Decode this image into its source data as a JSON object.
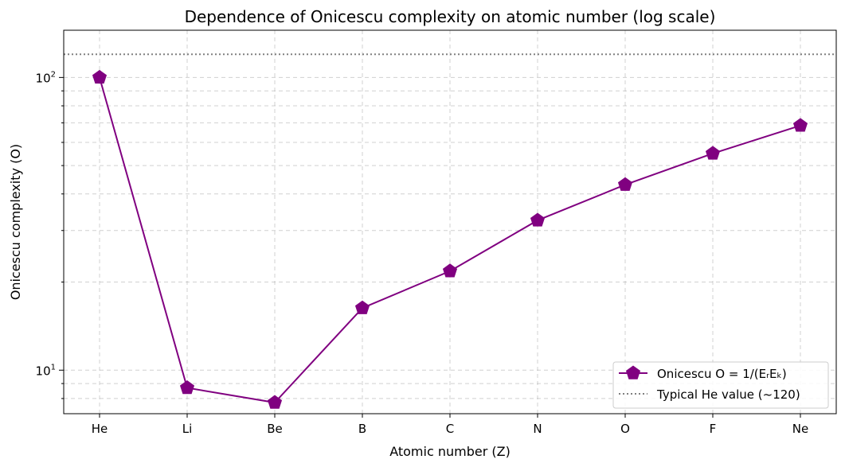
{
  "chart_data": {
    "type": "line",
    "title": "Dependence of Onicescu complexity on atomic number (log scale)",
    "xlabel": "Atomic number (Z)",
    "ylabel": "Onicescu complexity (O)",
    "yscale": "log",
    "ylim": [
      7.1,
      145
    ],
    "categories": [
      "He",
      "Li",
      "Be",
      "B",
      "C",
      "N",
      "O",
      "F",
      "Ne"
    ],
    "y_ticks": [
      {
        "value": 10,
        "base": "10",
        "exp": "1"
      },
      {
        "value": 100,
        "base": "10",
        "exp": "2"
      }
    ],
    "series": [
      {
        "name": "Onicescu O = 1/(EᵣEₖ)",
        "color": "#800080",
        "marker": "pentagon",
        "values": [
          100,
          8.7,
          7.75,
          16.3,
          21.8,
          32.5,
          43,
          55,
          68.5
        ]
      }
    ],
    "reference_lines": [
      {
        "name": "Typical He value (~120)",
        "value": 120,
        "color": "#808080",
        "style": "dotted"
      }
    ],
    "grid": true,
    "legend_position": "lower-right"
  }
}
